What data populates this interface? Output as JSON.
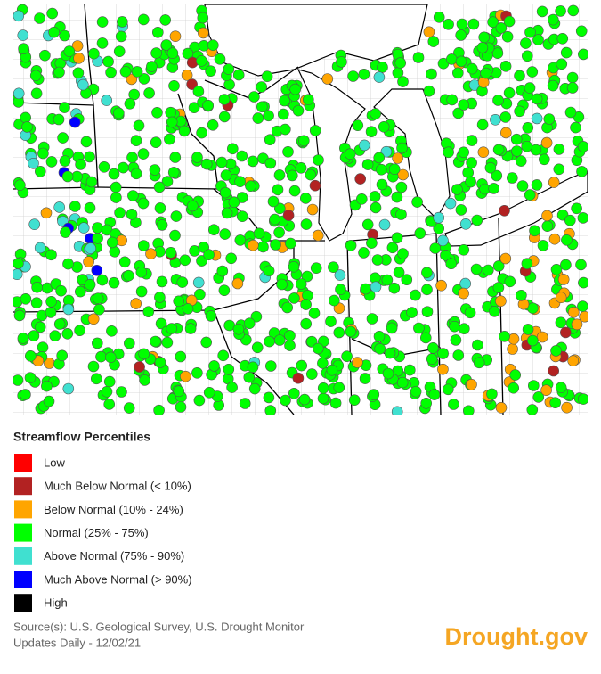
{
  "legend": {
    "title": "Streamflow Percentiles",
    "items": [
      {
        "label": "Low",
        "color": "#ff0000"
      },
      {
        "label": "Much Below Normal (< 10%)",
        "color": "#b22222"
      },
      {
        "label": "Below Normal (10% - 24%)",
        "color": "#ffa500"
      },
      {
        "label": "Normal (25% - 75%)",
        "color": "#00ff00"
      },
      {
        "label": "Above Normal (75% - 90%)",
        "color": "#40e0d0"
      },
      {
        "label": "Much Above Normal (> 90%)",
        "color": "#0000ff"
      },
      {
        "label": "High",
        "color": "#000000"
      }
    ]
  },
  "footer": {
    "source": "Source(s): U.S. Geological Survey, U.S. Drought Monitor",
    "updated": "Updates Daily - 12/02/21",
    "brand": "Drought.gov"
  }
}
